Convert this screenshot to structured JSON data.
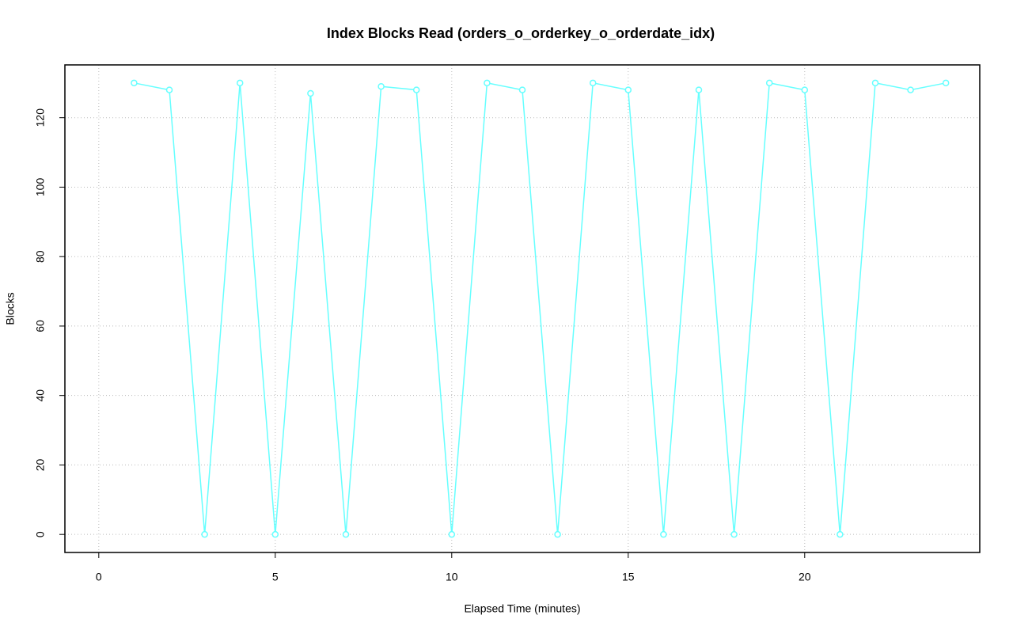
{
  "chart_data": {
    "type": "line",
    "title": "Index Blocks Read (orders_o_orderkey_o_orderdate_idx)",
    "x_label": "Elapsed Time (minutes)",
    "y_label": "Blocks",
    "x": [
      1,
      2,
      3,
      4,
      5,
      6,
      7,
      8,
      9,
      10,
      11,
      12,
      13,
      14,
      15,
      16,
      17,
      18,
      19,
      20,
      21,
      22,
      23,
      24
    ],
    "series": [
      {
        "color": "#66ffff",
        "values": [
          130,
          128,
          0,
          130,
          0,
          127,
          0,
          129,
          128,
          0,
          130,
          128,
          0,
          130,
          128,
          0,
          128,
          0,
          130,
          128,
          0,
          130,
          128,
          130
        ]
      }
    ],
    "xlim": [
      -0.96,
      24.96
    ],
    "ylim": [
      -5.2,
      135.2
    ],
    "xticks": [
      0,
      5,
      10,
      15,
      20
    ],
    "yticks": [
      0,
      20,
      40,
      60,
      80,
      100,
      120
    ],
    "grid": true
  }
}
